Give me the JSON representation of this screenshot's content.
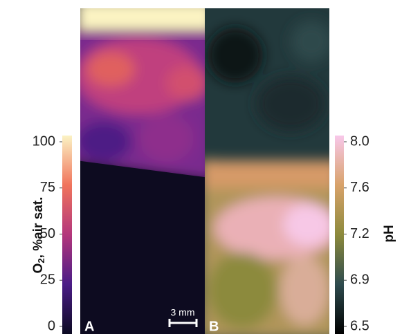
{
  "panels": [
    {
      "label": "A"
    },
    {
      "label": "B"
    }
  ],
  "scale_bar": "3 mm",
  "colorbars": [
    {
      "title_main": "O",
      "title_sub": "2",
      "title_rest": ", %air sat.",
      "ticks": [
        0,
        25,
        50,
        75,
        100
      ]
    },
    {
      "title": "pH",
      "ticks": [
        6.5,
        6.9,
        7.2,
        7.6,
        {
          "value": 8,
          "label": "8.0"
        }
      ]
    }
  ]
}
